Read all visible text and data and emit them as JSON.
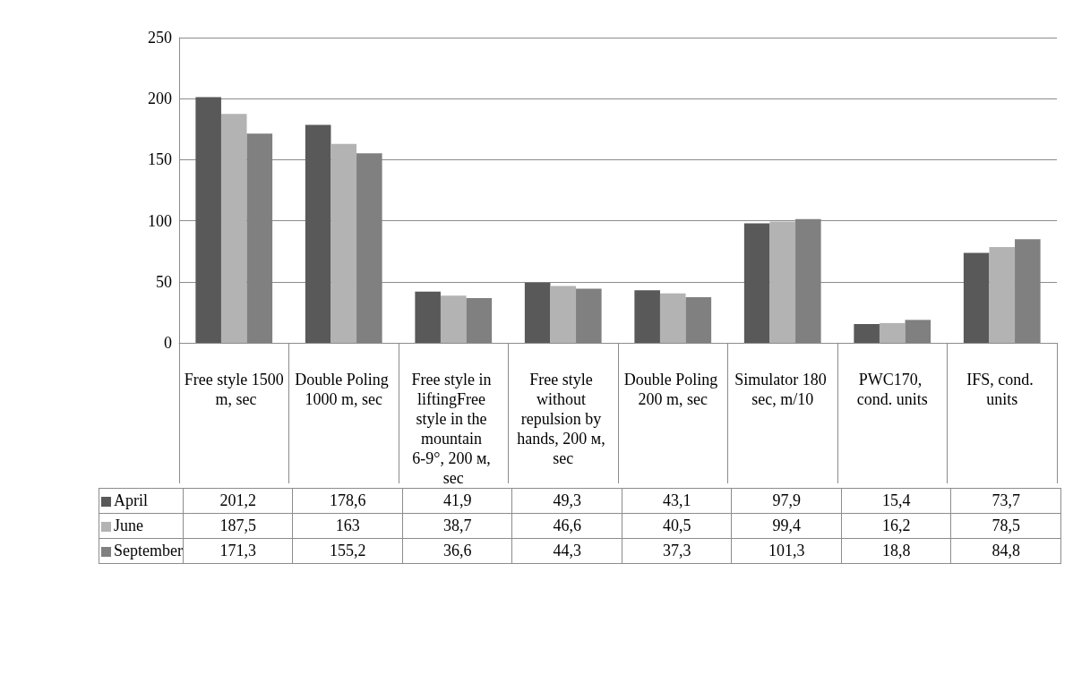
{
  "chart_data": {
    "type": "bar",
    "categories": [
      "Free style 1500 m, sec",
      "Double Poling 1000 m, sec",
      "Free style in liftingFree style in the mountain 6-9°, 200 м, sec",
      "Free style without repulsion by hands, 200 м, sec",
      "Double Poling 200 m, sec",
      "Simulator 180 sec, m/10",
      "PWC170, cond. units",
      "IFS, cond. units"
    ],
    "series": [
      {
        "name": "April",
        "color": "#595959",
        "values": [
          201.2,
          178.6,
          41.9,
          49.3,
          43.1,
          97.9,
          15.4,
          73.7
        ],
        "value_labels": [
          "201,2",
          "178,6",
          "41,9",
          "49,3",
          "43,1",
          "97,9",
          "15,4",
          "73,7"
        ]
      },
      {
        "name": "June",
        "color": "#b3b3b3",
        "values": [
          187.5,
          163,
          38.7,
          46.6,
          40.5,
          99.4,
          16.2,
          78.5
        ],
        "value_labels": [
          "187,5",
          "163",
          "38,7",
          "46,6",
          "40,5",
          "99,4",
          "16,2",
          "78,5"
        ]
      },
      {
        "name": "September",
        "color": "#808080",
        "values": [
          171.3,
          155.2,
          36.6,
          44.3,
          37.3,
          101.3,
          18.8,
          84.8
        ],
        "value_labels": [
          "171,3",
          "155,2",
          "36,6",
          "44,3",
          "37,3",
          "101,3",
          "18,8",
          "84,8"
        ]
      }
    ],
    "ylim": [
      0,
      250
    ],
    "yticks": [
      0,
      50,
      100,
      150,
      200,
      250
    ],
    "grid": "y",
    "legend": "bottom left"
  }
}
